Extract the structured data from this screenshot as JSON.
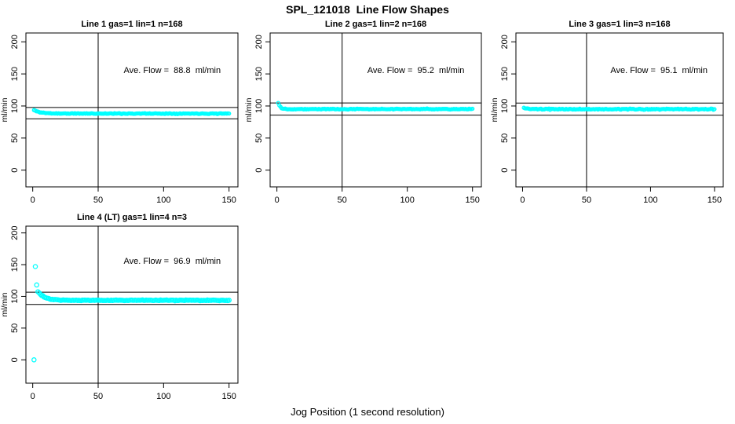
{
  "title": "SPL_121018  Line Flow Shapes",
  "xlabel": "Jog Position (1 second resolution)",
  "colors": {
    "points": "#00FFFF",
    "axis": "#000000",
    "text": "#000000",
    "background": "#FFFFFF"
  },
  "chart_data": {
    "type": "scatter",
    "x_ticks": [
      0,
      50,
      100,
      150
    ],
    "y_ticks": [
      0,
      50,
      100,
      150,
      200
    ],
    "xlabel": "Jog Position (1 second resolution)",
    "ylabel": "ml/min",
    "x_range_shown": [
      0,
      155
    ],
    "y_range_shown": [
      0,
      200
    ],
    "vline_x": 50,
    "point_color": "#00FFFF",
    "grid": "off",
    "panels": [
      {
        "title": "Line 1 gas=1 lin=1 n=168",
        "annotation": "Ave. Flow =  88.8  ml/min",
        "ave_flow_ml_min": 88.8,
        "n": 168,
        "ref_lines": [
          97.7,
          79.9
        ],
        "band": {
          "x_start": 1,
          "x_end": 150,
          "count": 168,
          "y_initial": 93.5,
          "y_settle": 88.2,
          "decay_tau": 5,
          "noise": 0.9
        },
        "outliers": []
      },
      {
        "title": "Line 2 gas=1 lin=2 n=168",
        "annotation": "Ave. Flow =  95.2  ml/min",
        "ave_flow_ml_min": 95.2,
        "n": 168,
        "ref_lines": [
          104.7,
          85.7
        ],
        "band": {
          "x_start": 1,
          "x_end": 150,
          "count": 168,
          "y_initial": 105.0,
          "y_settle": 95.2,
          "decay_tau": 1.6,
          "noise": 0.9
        },
        "outliers": []
      },
      {
        "title": "Line 3 gas=1 lin=3 n=168",
        "annotation": "Ave. Flow =  95.1  ml/min",
        "ave_flow_ml_min": 95.1,
        "n": 168,
        "ref_lines": [
          104.6,
          85.6
        ],
        "band": {
          "x_start": 1,
          "x_end": 150,
          "count": 168,
          "y_initial": 97.0,
          "y_settle": 95.0,
          "decay_tau": 3,
          "noise": 1.2
        },
        "outliers": []
      },
      {
        "title": "Line 4 (LT) gas=1 lin=4 n=3",
        "annotation": "Ave. Flow =  96.9  ml/min",
        "ave_flow_ml_min": 96.9,
        "n": 3,
        "ref_lines": [
          106.6,
          87.2
        ],
        "band": {
          "x_start": 4,
          "x_end": 150,
          "count": 160,
          "y_initial": 107.5,
          "y_settle": 93.8,
          "decay_tau": 5,
          "noise": 1.0
        },
        "outliers": [
          [
            1,
            0
          ],
          [
            2,
            147
          ],
          [
            3,
            118
          ]
        ]
      }
    ]
  }
}
